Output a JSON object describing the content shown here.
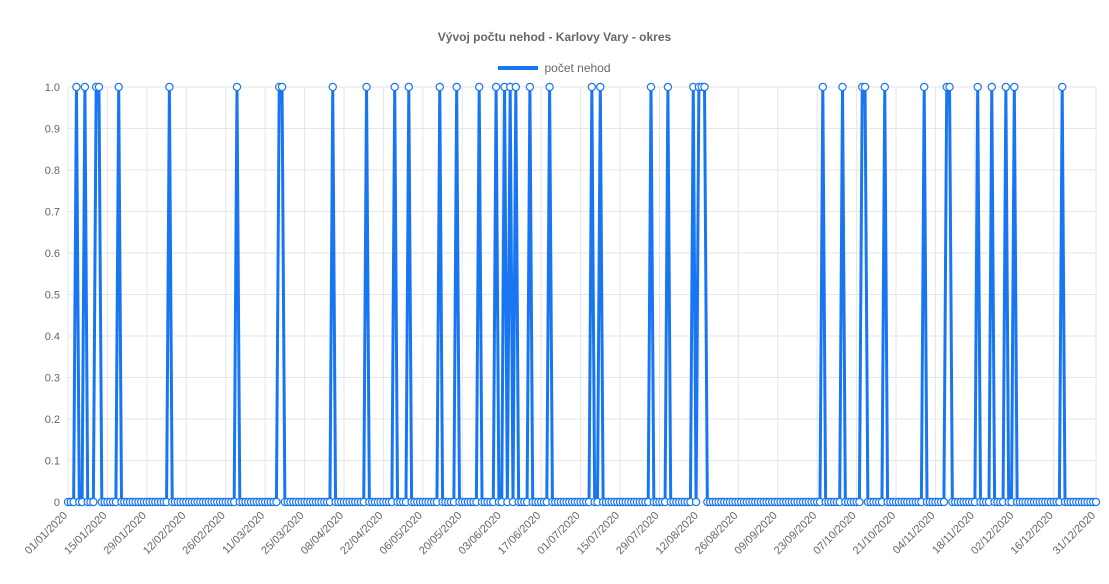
{
  "chart_data": {
    "type": "line",
    "title": "Vývoj počtu nehod - Karlovy Vary - okres",
    "xlabel": "",
    "ylabel": "",
    "ylim": [
      0,
      1
    ],
    "yticks": [
      "0",
      "0.1",
      "0.2",
      "0.3",
      "0.4",
      "0.5",
      "0.6",
      "0.7",
      "0.8",
      "0.9",
      "1.0"
    ],
    "x_range": [
      "2020-01-01",
      "2020-12-31"
    ],
    "x_tick_labels": [
      "01/01/2020",
      "15/01/2020",
      "29/01/2020",
      "12/02/2020",
      "26/02/2020",
      "11/03/2020",
      "25/03/2020",
      "08/04/2020",
      "22/04/2020",
      "06/05/2020",
      "20/05/2020",
      "03/06/2020",
      "17/06/2020",
      "01/07/2020",
      "15/07/2020",
      "29/07/2020",
      "12/08/2020",
      "26/08/2020",
      "09/09/2020",
      "23/09/2020",
      "07/10/2020",
      "21/10/2020",
      "04/11/2020",
      "18/11/2020",
      "02/12/2020",
      "16/12/2020",
      "31/12/2020"
    ],
    "series": [
      {
        "name": "počet nehod",
        "color": "#1976f2",
        "accident_dates": [
          "2020-01-04",
          "2020-01-07",
          "2020-01-11",
          "2020-01-12",
          "2020-01-19",
          "2020-02-06",
          "2020-03-01",
          "2020-03-16",
          "2020-03-17",
          "2020-04-04",
          "2020-04-16",
          "2020-04-26",
          "2020-05-01",
          "2020-05-12",
          "2020-05-18",
          "2020-05-26",
          "2020-06-01",
          "2020-06-04",
          "2020-06-06",
          "2020-06-08",
          "2020-06-13",
          "2020-06-20",
          "2020-07-05",
          "2020-07-08",
          "2020-07-26",
          "2020-08-01",
          "2020-08-10",
          "2020-08-12",
          "2020-08-13",
          "2020-08-14",
          "2020-09-25",
          "2020-10-02",
          "2020-10-09",
          "2020-10-10",
          "2020-10-17",
          "2020-10-31",
          "2020-11-08",
          "2020-11-09",
          "2020-11-19",
          "2020-11-24",
          "2020-11-29",
          "2020-12-02",
          "2020-12-19"
        ]
      }
    ],
    "grid": true,
    "legend": "top-center"
  }
}
